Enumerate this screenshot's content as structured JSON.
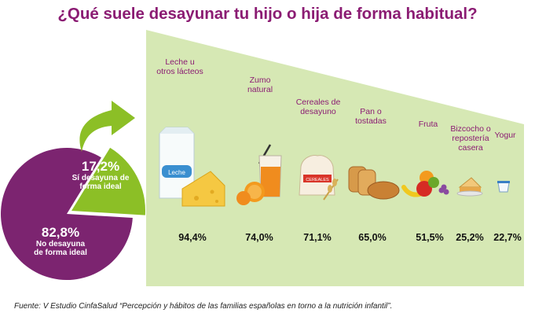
{
  "title": "¿Qué suele desayunar tu hijo o hija de forma habitual?",
  "chart_data": [
    {
      "type": "pie",
      "slices": [
        {
          "value": 17.2,
          "label": "17,2%",
          "description": "Sí desayuna de forma ideal",
          "color": "#8cbf26"
        },
        {
          "value": 82.8,
          "label": "82,8%",
          "description": "No desayuna de forma ideal",
          "color": "#7c2470"
        }
      ]
    },
    {
      "type": "bar",
      "categories": [
        "Leche u otros lácteos",
        "Zumo natural",
        "Cereales de desayuno",
        "Pan o tostadas",
        "Fruta",
        "Bizcocho o repostería casera",
        "Yogur"
      ],
      "values": [
        94.4,
        74.0,
        71.1,
        65.0,
        51.5,
        25.2,
        22.7
      ],
      "value_labels": [
        "94,4%",
        "74,0%",
        "71,1%",
        "65,0%",
        "51,5%",
        "25,2%",
        "22,7%"
      ],
      "ylim": [
        0,
        100
      ],
      "color": "#d6e8b4"
    }
  ],
  "icons": [
    "milk-carton-icon",
    "cheese-icon",
    "orange-juice-icon",
    "cereal-bag-icon",
    "bread-icon",
    "fruit-bowl-icon",
    "cake-slice-icon",
    "yogurt-icon",
    "arrow-icon"
  ],
  "icon_text": {
    "milk_carton": "Leche",
    "cereal_bag": "CEREALES"
  },
  "source": "Fuente: V Estudio CinfaSalud “Percepción y hábitos de las familias españolas en torno a la nutrición infantil”."
}
